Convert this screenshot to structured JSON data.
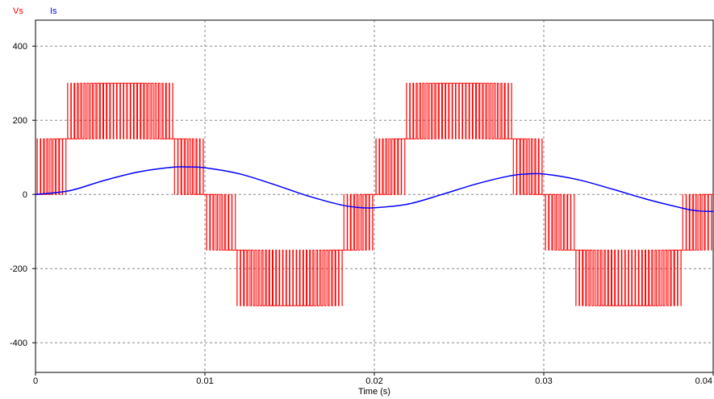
{
  "chart_data": {
    "type": "line",
    "xlabel": "Time (s)",
    "ylabel": "",
    "xlim": [
      0,
      0.04
    ],
    "ylim": [
      -480,
      470
    ],
    "grid": true,
    "legend_position": "top-left",
    "x_ticks": [
      {
        "value": 0,
        "label": "0"
      },
      {
        "value": 0.01,
        "label": "0.01"
      },
      {
        "value": 0.02,
        "label": "0.02"
      },
      {
        "value": 0.03,
        "label": "0.03"
      },
      {
        "value": 0.04,
        "label": "0.04"
      }
    ],
    "y_ticks": [
      {
        "value": 400,
        "label": "400"
      },
      {
        "value": 200,
        "label": "200"
      },
      {
        "value": 0,
        "label": "0"
      },
      {
        "value": -200,
        "label": "-200"
      },
      {
        "value": -400,
        "label": "-400"
      }
    ],
    "series": [
      {
        "name": "Vs",
        "color": "#ff0000",
        "kind": "multilevel-pwm",
        "fundamental_frequency_hz": 50,
        "levels": [
          -300,
          -150,
          0,
          150,
          300
        ],
        "switching_pulses_per_cycle": 100
      },
      {
        "name": "Is",
        "color": "#0000ff",
        "kind": "sinusoid-with-dc-decay",
        "x": [
          0,
          0.002,
          0.004,
          0.006,
          0.008,
          0.009,
          0.01,
          0.012,
          0.014,
          0.016,
          0.018,
          0.019,
          0.02,
          0.022,
          0.024,
          0.026,
          0.028,
          0.029,
          0.03,
          0.032,
          0.034,
          0.036,
          0.038,
          0.039,
          0.04
        ],
        "y": [
          0,
          10,
          37,
          60,
          73,
          74,
          72,
          56,
          28,
          -3,
          -28,
          -35,
          -36,
          -26,
          0,
          28,
          50,
          55,
          55,
          40,
          15,
          -12,
          -35,
          -44,
          -46
        ]
      }
    ]
  }
}
